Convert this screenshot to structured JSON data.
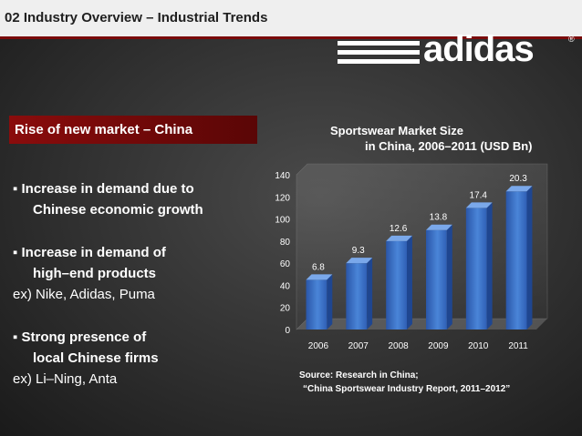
{
  "header": {
    "title": "02 Industry Overview – Industrial Trends"
  },
  "logo": {
    "text": "adidas",
    "registered": "®"
  },
  "section": {
    "title": "Rise of new market – China"
  },
  "bullets": {
    "b1_line1": "Increase in demand due to",
    "b1_line2": "Chinese economic growth",
    "b2_line1": "Increase in demand of",
    "b2_line2": "high–end products",
    "b2_example": "ex) Nike, Adidas, Puma",
    "b3_line1": "Strong presence of",
    "b3_line2": "local Chinese firms",
    "b3_example": "ex) Li–Ning, Anta"
  },
  "source": {
    "line1": "Source: Research in China;",
    "line2": "“China Sportswear Industry Report, 2011–2012”"
  },
  "colors": {
    "accent": "#8a0c0c",
    "bar": "#3a6fc4"
  },
  "chart_data": {
    "type": "bar",
    "title_line1": "Sportswear Market Size",
    "title_line2": "in China, 2006–2011 (USD Bn)",
    "categories": [
      "2006",
      "2007",
      "2008",
      "2009",
      "2010",
      "2011"
    ],
    "values": [
      6.8,
      9.3,
      12.6,
      13.8,
      17.4,
      20.3
    ],
    "data_labels": [
      "6.8",
      "9.3",
      "12.6",
      "13.8",
      "17.4",
      "20.3"
    ],
    "plotted_values": [
      45,
      60,
      80,
      90,
      110,
      125
    ],
    "yticks": [
      "0",
      "20",
      "40",
      "60",
      "80",
      "100",
      "120",
      "140"
    ],
    "ylim": [
      0,
      140
    ],
    "xlabel": "",
    "ylabel": "",
    "grid": false,
    "legend": "none"
  }
}
